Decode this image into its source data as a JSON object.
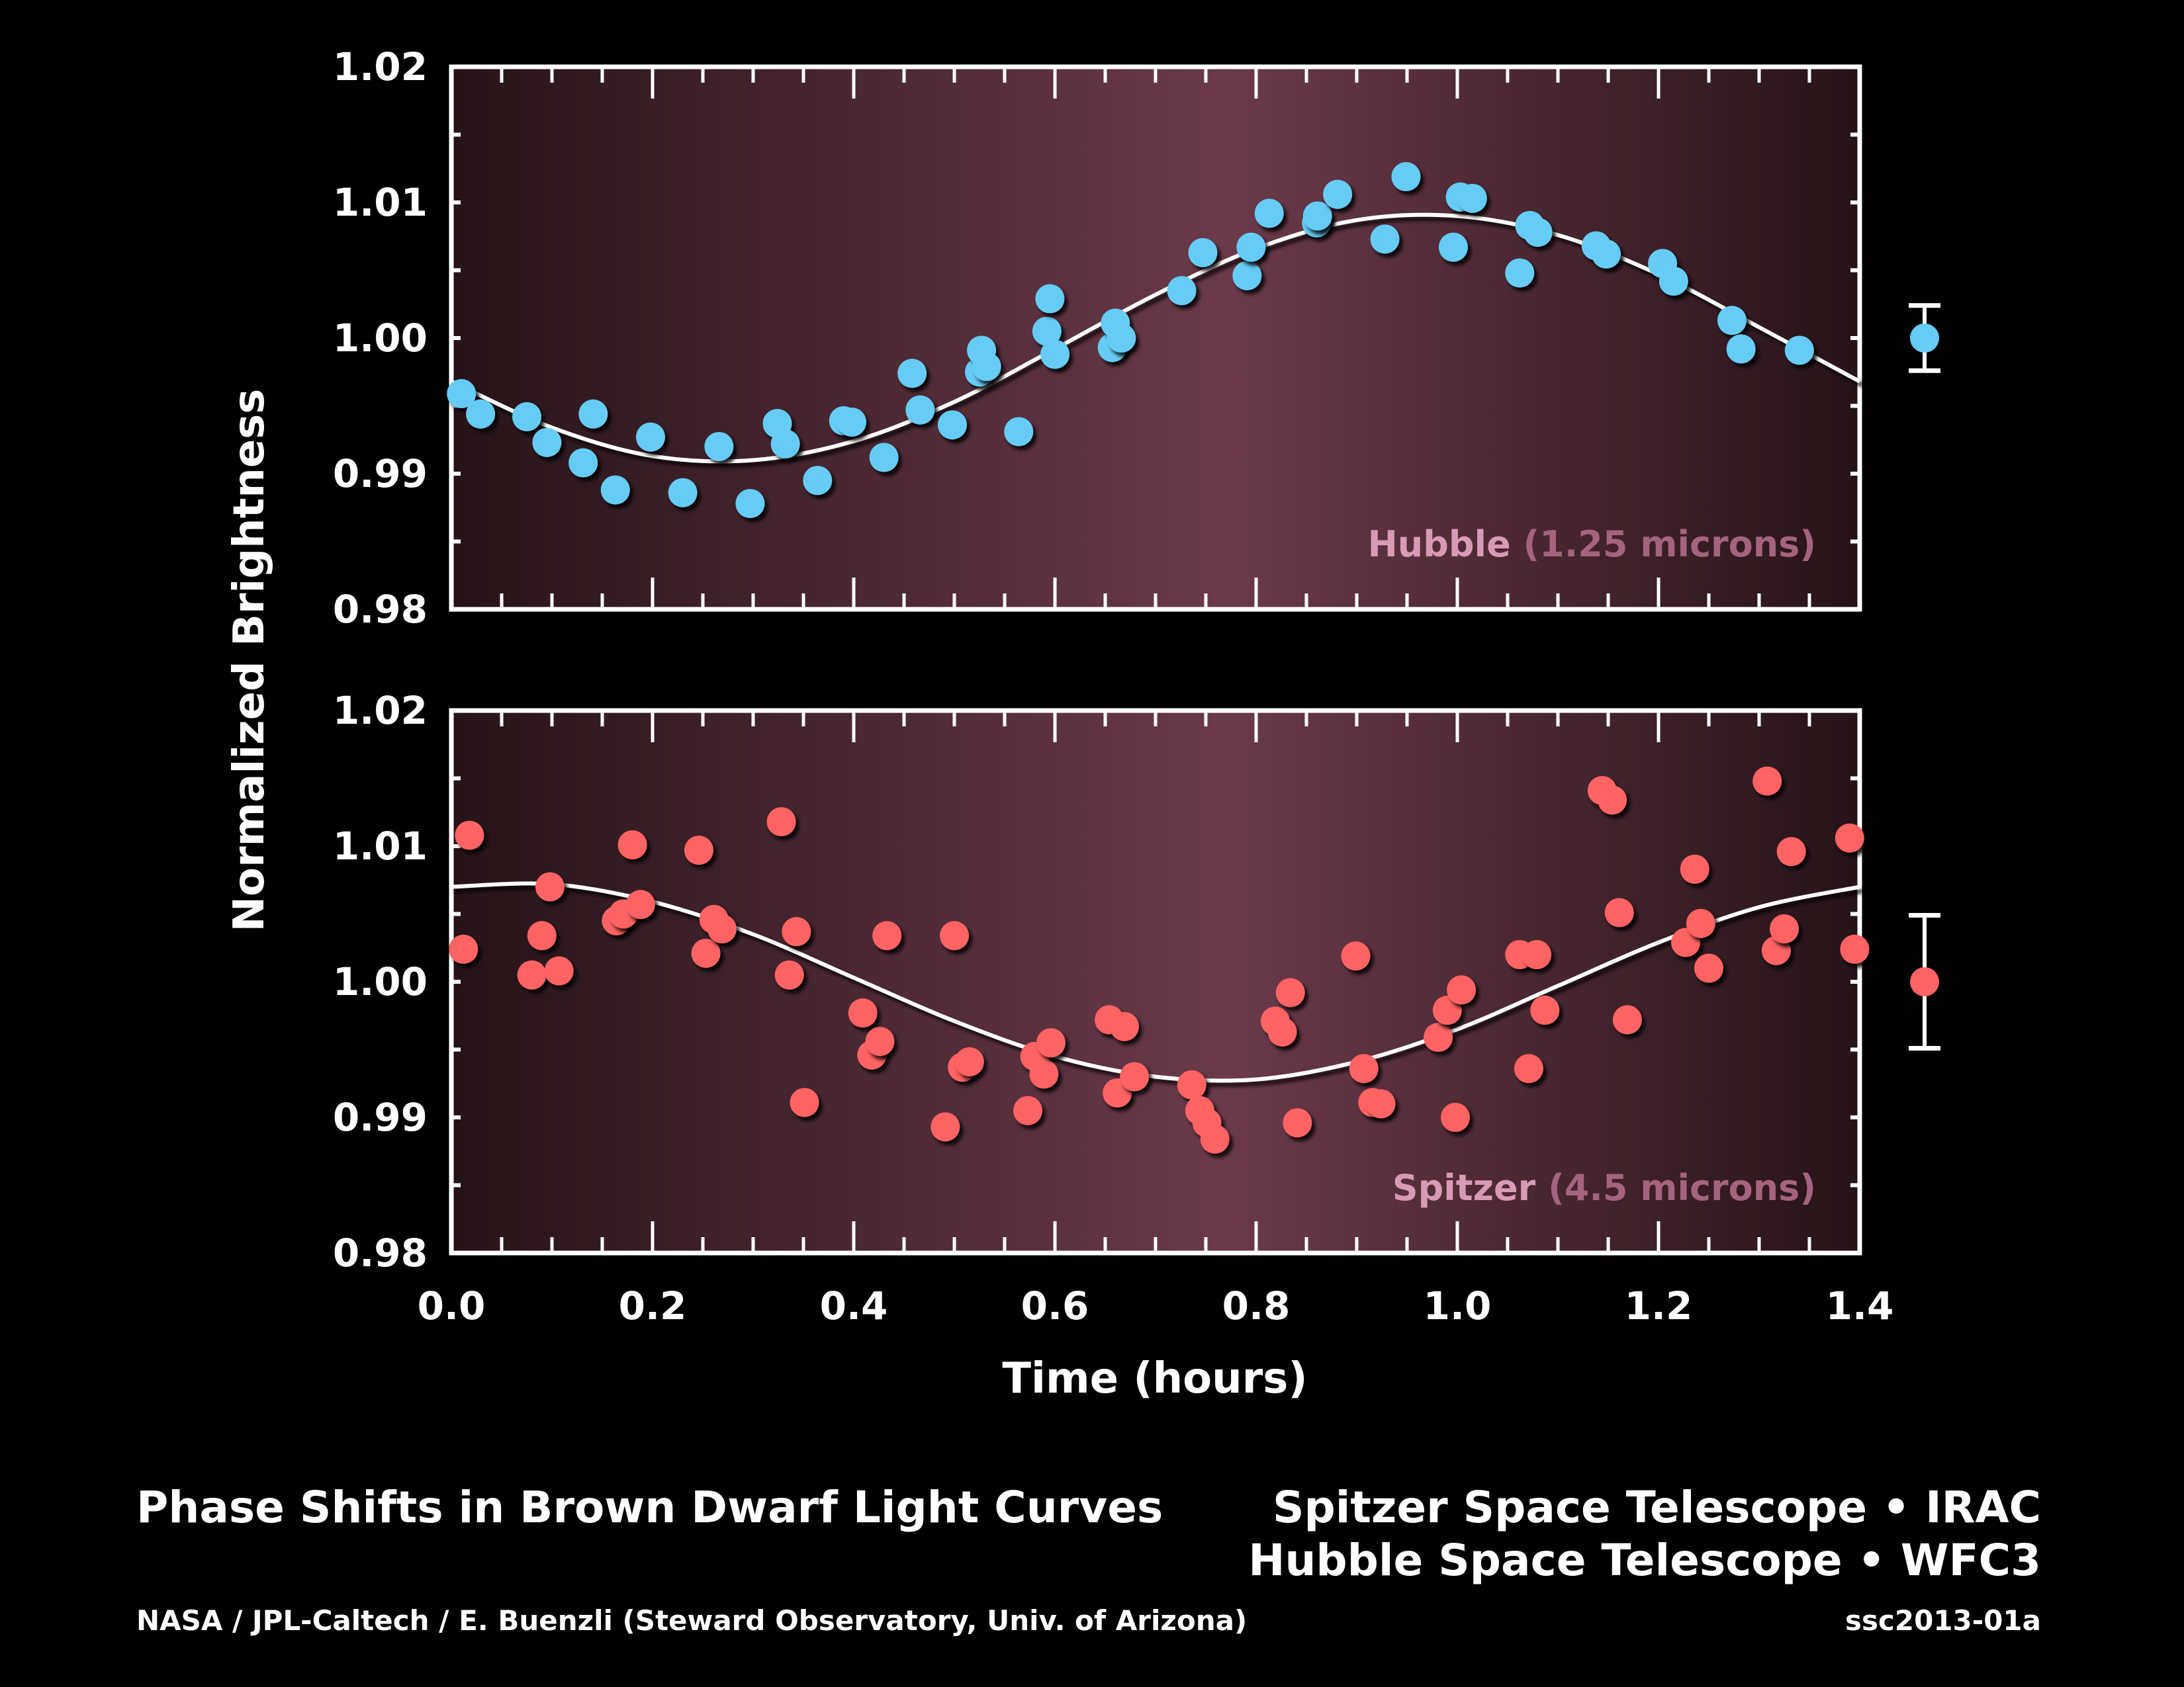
{
  "chart_data": [
    {
      "type": "scatter",
      "panel_label_name": "Hubble",
      "panel_label_detail": "(1.25 microns)",
      "ylabel": "Normalized Brightness",
      "xlabel": "Time (hours)",
      "xlim": [
        0.0,
        1.4
      ],
      "ylim": [
        0.98,
        1.02
      ],
      "yticks": [
        "0.98",
        "0.99",
        "1.00",
        "1.01",
        "1.02"
      ],
      "color": "#66ccf5",
      "points": [
        [
          0.01,
          0.9959
        ],
        [
          0.029,
          0.9944
        ],
        [
          0.075,
          0.9942
        ],
        [
          0.095,
          0.9923
        ],
        [
          0.131,
          0.9908
        ],
        [
          0.141,
          0.9944
        ],
        [
          0.163,
          0.9888
        ],
        [
          0.198,
          0.9927
        ],
        [
          0.23,
          0.9886
        ],
        [
          0.266,
          0.992
        ],
        [
          0.297,
          0.9878
        ],
        [
          0.324,
          0.9937
        ],
        [
          0.332,
          0.9922
        ],
        [
          0.364,
          0.9895
        ],
        [
          0.39,
          0.9939
        ],
        [
          0.398,
          0.9938
        ],
        [
          0.43,
          0.9912
        ],
        [
          0.458,
          0.9974
        ],
        [
          0.466,
          0.9947
        ],
        [
          0.498,
          0.9936
        ],
        [
          0.525,
          0.9975
        ],
        [
          0.527,
          0.9991
        ],
        [
          0.532,
          0.9979
        ],
        [
          0.564,
          0.9931
        ],
        [
          0.592,
          1.0005
        ],
        [
          0.595,
          1.0029
        ],
        [
          0.6,
          0.9988
        ],
        [
          0.657,
          0.9993
        ],
        [
          0.66,
          1.0011
        ],
        [
          0.666,
          1.0
        ],
        [
          0.726,
          1.0035
        ],
        [
          0.747,
          1.0063
        ],
        [
          0.791,
          1.0046
        ],
        [
          0.795,
          1.0067
        ],
        [
          0.813,
          1.0092
        ],
        [
          0.86,
          1.0085
        ],
        [
          0.861,
          1.009
        ],
        [
          0.881,
          1.0106
        ],
        [
          0.928,
          1.0073
        ],
        [
          0.949,
          1.0119
        ],
        [
          0.996,
          1.0067
        ],
        [
          1.003,
          1.0104
        ],
        [
          1.015,
          1.0103
        ],
        [
          1.062,
          1.0048
        ],
        [
          1.072,
          1.0083
        ],
        [
          1.08,
          1.0078
        ],
        [
          1.138,
          1.0068
        ],
        [
          1.148,
          1.0062
        ],
        [
          1.204,
          1.0055
        ],
        [
          1.215,
          1.0042
        ],
        [
          1.273,
          1.0013
        ],
        [
          1.282,
          0.9992
        ],
        [
          1.34,
          0.9991
        ]
      ],
      "fit": [
        [
          0.0,
          0.9968
        ],
        [
          0.1,
          0.9934
        ],
        [
          0.2,
          0.9913
        ],
        [
          0.3,
          0.991
        ],
        [
          0.4,
          0.9924
        ],
        [
          0.5,
          0.9953
        ],
        [
          0.6,
          0.9992
        ],
        [
          0.7,
          1.0032
        ],
        [
          0.8,
          1.0066
        ],
        [
          0.9,
          1.0087
        ],
        [
          1.0,
          1.009
        ],
        [
          1.1,
          1.0076
        ],
        [
          1.2,
          1.0047
        ],
        [
          1.3,
          1.0008
        ],
        [
          1.4,
          0.9968
        ]
      ],
      "typical_error": {
        "value": 1.0,
        "error": 0.0024
      }
    },
    {
      "type": "scatter",
      "panel_label_name": "Spitzer",
      "panel_label_detail": "(4.5 microns)",
      "xlim": [
        0.0,
        1.4
      ],
      "ylim": [
        0.98,
        1.02
      ],
      "yticks": [
        "0.98",
        "0.99",
        "1.00",
        "1.01",
        "1.02"
      ],
      "xticks": [
        "0.0",
        "0.2",
        "0.4",
        "0.6",
        "0.8",
        "1.0",
        "1.2",
        "1.4"
      ],
      "color": "#ff6363",
      "points": [
        [
          0.012,
          1.0024
        ],
        [
          0.018,
          1.0108
        ],
        [
          0.08,
          1.0005
        ],
        [
          0.09,
          1.0034
        ],
        [
          0.098,
          1.007
        ],
        [
          0.107,
          1.0008
        ],
        [
          0.164,
          1.0045
        ],
        [
          0.171,
          1.005
        ],
        [
          0.18,
          1.0101
        ],
        [
          0.188,
          1.0057
        ],
        [
          0.246,
          1.0097
        ],
        [
          0.253,
          1.0021
        ],
        [
          0.261,
          1.0046
        ],
        [
          0.269,
          1.0039
        ],
        [
          0.328,
          1.0118
        ],
        [
          0.336,
          1.0005
        ],
        [
          0.343,
          1.0037
        ],
        [
          0.351,
          0.9911
        ],
        [
          0.409,
          0.9977
        ],
        [
          0.418,
          0.9946
        ],
        [
          0.426,
          0.9956
        ],
        [
          0.433,
          1.0034
        ],
        [
          0.491,
          0.9893
        ],
        [
          0.5,
          1.0034
        ],
        [
          0.508,
          0.9937
        ],
        [
          0.515,
          0.9941
        ],
        [
          0.573,
          0.9905
        ],
        [
          0.58,
          0.9945
        ],
        [
          0.589,
          0.9932
        ],
        [
          0.596,
          0.9955
        ],
        [
          0.654,
          0.9972
        ],
        [
          0.662,
          0.9918
        ],
        [
          0.669,
          0.9967
        ],
        [
          0.679,
          0.993
        ],
        [
          0.736,
          0.9924
        ],
        [
          0.744,
          0.9905
        ],
        [
          0.751,
          0.9896
        ],
        [
          0.759,
          0.9884
        ],
        [
          0.819,
          0.9971
        ],
        [
          0.826,
          0.9963
        ],
        [
          0.834,
          0.9992
        ],
        [
          0.841,
          0.9896
        ],
        [
          0.899,
          1.0019
        ],
        [
          0.907,
          0.9936
        ],
        [
          0.916,
          0.9911
        ],
        [
          0.924,
          0.991
        ],
        [
          0.981,
          0.9959
        ],
        [
          0.99,
          0.9979
        ],
        [
          0.998,
          0.99
        ],
        [
          1.004,
          0.9994
        ],
        [
          1.062,
          1.002
        ],
        [
          1.071,
          0.9936
        ],
        [
          1.079,
          1.002
        ],
        [
          1.087,
          0.9979
        ],
        [
          1.144,
          1.0141
        ],
        [
          1.154,
          1.0134
        ],
        [
          1.161,
          1.0051
        ],
        [
          1.169,
          0.9972
        ],
        [
          1.227,
          1.0029
        ],
        [
          1.236,
          1.0083
        ],
        [
          1.242,
          1.0043
        ],
        [
          1.25,
          1.001
        ],
        [
          1.308,
          1.0148
        ],
        [
          1.317,
          1.0023
        ],
        [
          1.325,
          1.0039
        ],
        [
          1.332,
          1.0096
        ],
        [
          1.39,
          1.0106
        ],
        [
          1.395,
          1.0024
        ]
      ],
      "fit": [
        [
          0.0,
          1.007
        ],
        [
          0.1,
          1.0072
        ],
        [
          0.2,
          1.0059
        ],
        [
          0.3,
          1.0035
        ],
        [
          0.4,
          1.0003
        ],
        [
          0.5,
          0.9971
        ],
        [
          0.6,
          0.9945
        ],
        [
          0.7,
          0.993
        ],
        [
          0.8,
          0.9928
        ],
        [
          0.9,
          0.9941
        ],
        [
          1.0,
          0.9965
        ],
        [
          1.1,
          0.9997
        ],
        [
          1.2,
          1.0029
        ],
        [
          1.3,
          1.0055
        ],
        [
          1.4,
          1.007
        ]
      ],
      "typical_error": {
        "value": 1.0,
        "error": 0.0049
      }
    }
  ],
  "footer": {
    "title": "Phase Shifts in Brown Dwarf Light Curves",
    "instrument_line1": "Spitzer Space Telescope • IRAC",
    "instrument_line2": "Hubble Space Telescope • WFC3",
    "credit": "NASA / JPL-Caltech / E. Buenzli (Steward Observatory, Univ. of Arizona)",
    "image_id": "ssc2013-01a"
  },
  "colors": {
    "panel_edge": "#261318",
    "panel_center": "#6b3a4a",
    "label_name": "#d99ab5",
    "label_detail": "#a5637e"
  }
}
